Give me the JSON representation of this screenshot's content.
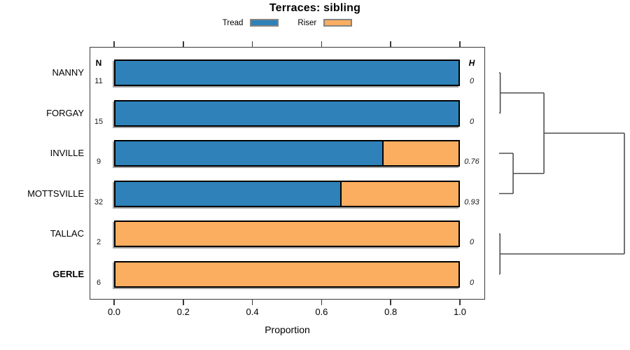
{
  "chart_data": {
    "type": "stacked_bar_horizontal_with_dendrogram",
    "title": "Terraces: sibling",
    "xlabel": "Proportion",
    "xlim": [
      0,
      1
    ],
    "xticks": [
      "0.0",
      "0.2",
      "0.4",
      "0.6",
      "0.8",
      "1.0"
    ],
    "xtick_values": [
      0,
      0.2,
      0.4,
      0.6,
      0.8,
      1.0
    ],
    "legend": [
      {
        "label": "Tread",
        "color": "#2e82b9"
      },
      {
        "label": "Riser",
        "color": "#fbad60"
      }
    ],
    "col_headers": {
      "n": "N",
      "h": "H"
    },
    "rows": [
      {
        "label": "NANNY",
        "bold": false,
        "n": "11",
        "tread": 1.0,
        "riser": 0.0,
        "h": "0"
      },
      {
        "label": "FORGAY",
        "bold": false,
        "n": "15",
        "tread": 1.0,
        "riser": 0.0,
        "h": "0"
      },
      {
        "label": "INVILLE",
        "bold": false,
        "n": "9",
        "tread": 0.778,
        "riser": 0.222,
        "h": "0.76"
      },
      {
        "label": "MOTTSVILLE",
        "bold": false,
        "n": "32",
        "tread": 0.656,
        "riser": 0.344,
        "h": "0.93"
      },
      {
        "label": "TALLAC",
        "bold": false,
        "n": "2",
        "tread": 0.0,
        "riser": 1.0,
        "h": "0"
      },
      {
        "label": "GERLE",
        "bold": true,
        "n": "6",
        "tread": 0.0,
        "riser": 1.0,
        "h": "0"
      }
    ],
    "dendrogram": {
      "note": "x: 0 = leaf baseline, 1 = root merge height; y: bar row index",
      "segments": [
        {
          "x1": 0,
          "y1": 0,
          "x2": 0.009,
          "y2": 0
        },
        {
          "x1": 0,
          "y1": 1,
          "x2": 0.009,
          "y2": 1
        },
        {
          "x1": 0.009,
          "y1": 0,
          "x2": 0.009,
          "y2": 1
        },
        {
          "x1": 0.009,
          "y1": 0.5,
          "x2": 0.358,
          "y2": 0.5
        },
        {
          "x1": 0,
          "y1": 2,
          "x2": 0.112,
          "y2": 2
        },
        {
          "x1": 0,
          "y1": 3,
          "x2": 0.112,
          "y2": 3
        },
        {
          "x1": 0.112,
          "y1": 2,
          "x2": 0.112,
          "y2": 3
        },
        {
          "x1": 0.112,
          "y1": 2.5,
          "x2": 0.358,
          "y2": 2.5
        },
        {
          "x1": 0.358,
          "y1": 0.5,
          "x2": 0.358,
          "y2": 2.5
        },
        {
          "x1": 0.358,
          "y1": 1.5,
          "x2": 1.0,
          "y2": 1.5
        },
        {
          "x1": 0,
          "y1": 4,
          "x2": 0.007,
          "y2": 4
        },
        {
          "x1": 0,
          "y1": 5,
          "x2": 0.007,
          "y2": 5
        },
        {
          "x1": 0.007,
          "y1": 4,
          "x2": 0.007,
          "y2": 5
        },
        {
          "x1": 0.007,
          "y1": 4.5,
          "x2": 1.0,
          "y2": 4.5
        },
        {
          "x1": 1.0,
          "y1": 1.5,
          "x2": 1.0,
          "y2": 4.5
        }
      ]
    }
  },
  "colors": {
    "tread": "#2e82b9",
    "riser": "#fbad60",
    "bar_border": "#000000",
    "bar_shadow": "#a3a3a3",
    "frame": "#3a3a3a",
    "dendro_line": "#4f4f4f"
  }
}
